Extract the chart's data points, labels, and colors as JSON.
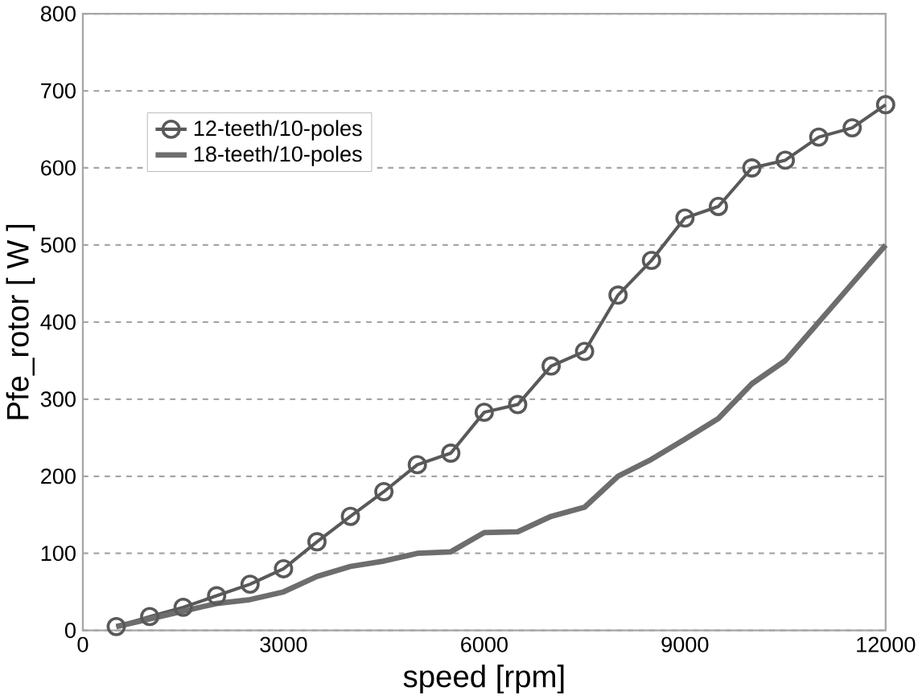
{
  "chart_data": {
    "type": "line",
    "xlabel": "speed  [rpm]",
    "ylabel": "Pfe_rotor  [ W ]",
    "x": [
      500,
      1000,
      1500,
      2000,
      2500,
      3000,
      3500,
      4000,
      4500,
      5000,
      5500,
      6000,
      6500,
      7000,
      7500,
      8000,
      8500,
      9000,
      9500,
      10000,
      10500,
      11000,
      11500,
      12000
    ],
    "series": [
      {
        "name": "12-teeth/10-poles",
        "color": "#595959",
        "marker": "circle",
        "values": [
          5,
          18,
          30,
          45,
          60,
          80,
          115,
          148,
          180,
          215,
          230,
          283,
          293,
          343,
          362,
          435,
          480,
          535,
          550,
          600,
          610,
          640,
          652,
          682
        ]
      },
      {
        "name": "18-teeth/10-poles",
        "color": "#6d6d6d",
        "marker": "none",
        "values": [
          5,
          15,
          25,
          35,
          40,
          50,
          70,
          83,
          90,
          100,
          102,
          127,
          128,
          148,
          160,
          200,
          222,
          248,
          275,
          320,
          350,
          400,
          450,
          500
        ]
      }
    ],
    "xlim": [
      0,
      12000
    ],
    "xticks": [
      0,
      3000,
      6000,
      9000,
      12000
    ],
    "ylim": [
      0,
      800
    ],
    "yticks": [
      0,
      100,
      200,
      300,
      400,
      500,
      600,
      700,
      800
    ],
    "grid": "y",
    "legend": "top left"
  }
}
